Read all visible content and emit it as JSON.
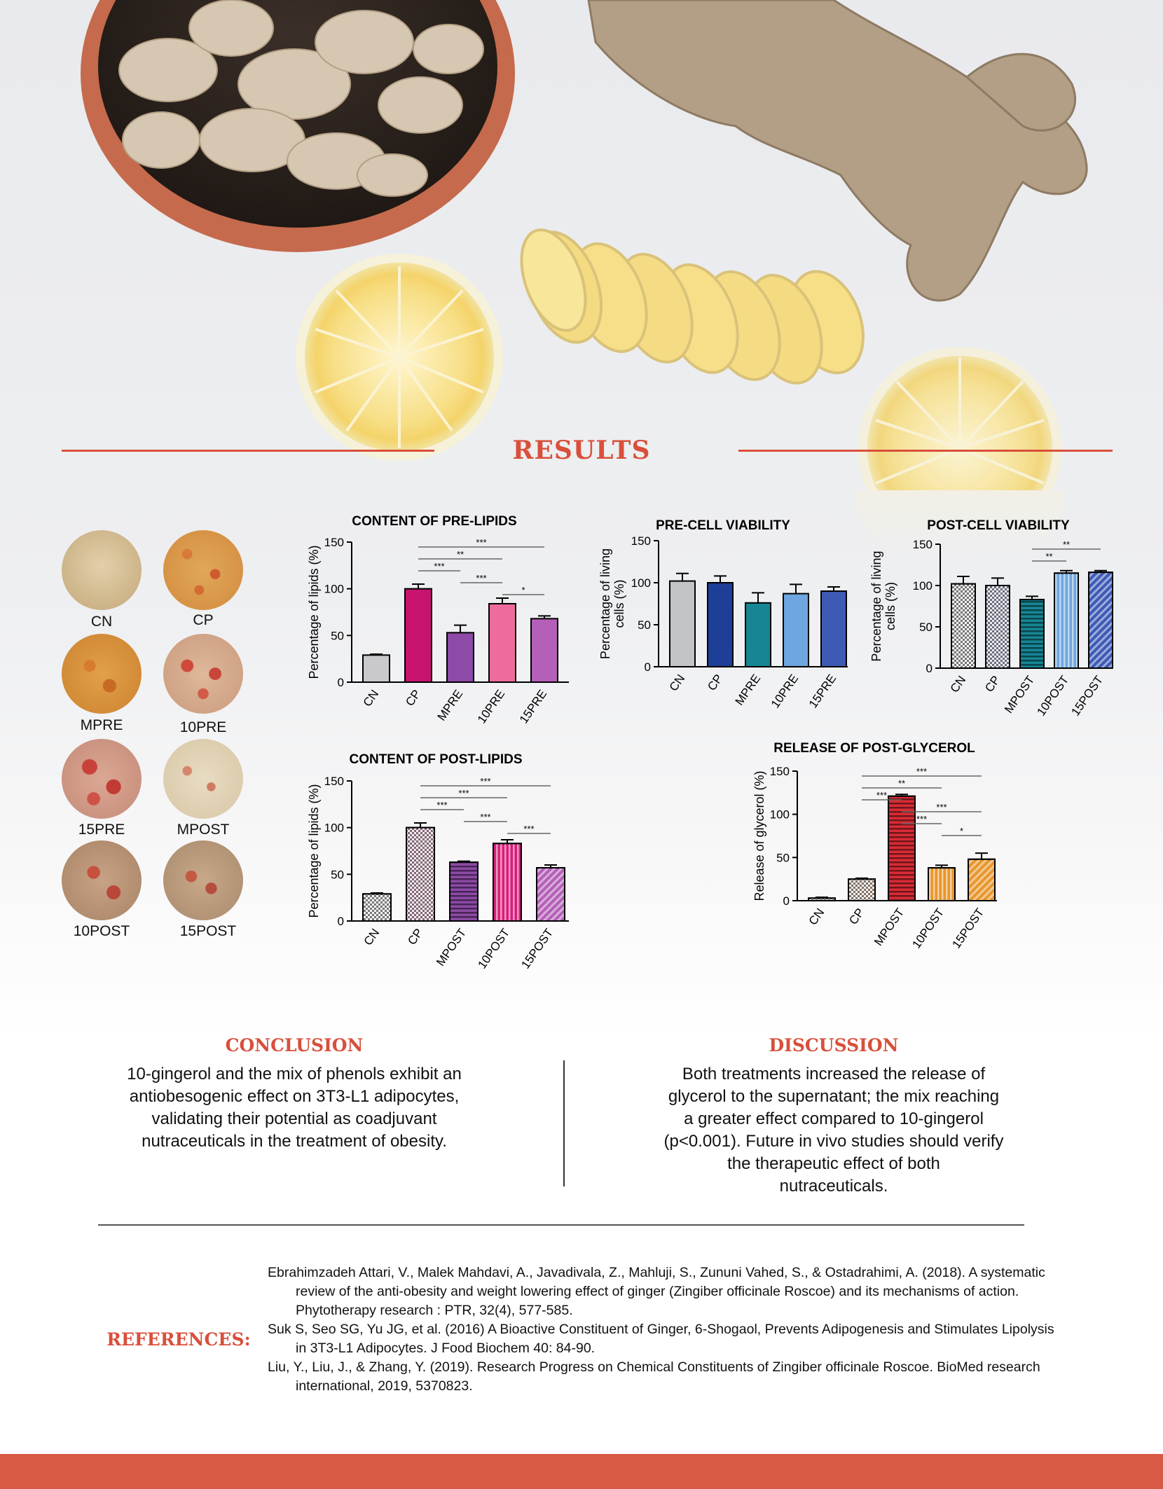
{
  "header": {
    "section_title": "RESULTS"
  },
  "micrographs": [
    {
      "label": "CN"
    },
    {
      "label": "CP"
    },
    {
      "label": "MPRE"
    },
    {
      "label": "10PRE"
    },
    {
      "label": "15PRE"
    },
    {
      "label": "MPOST"
    },
    {
      "label": "10POST"
    },
    {
      "label": "15POST"
    }
  ],
  "colors": {
    "accent": "#d94f3b",
    "footer": "#d95a44"
  },
  "chart_data": [
    {
      "id": "pre_lipids",
      "type": "bar",
      "title": "CONTENT OF PRE-LIPIDS",
      "ylabel": "Percentage of lipids (%)",
      "ylim": [
        0,
        150
      ],
      "yticks": [
        0,
        50,
        100,
        150
      ],
      "categories": [
        "CN",
        "CP",
        "MPRE",
        "10PRE",
        "15PRE"
      ],
      "values": [
        29,
        100,
        53,
        84,
        68
      ],
      "errors": [
        1,
        5,
        8,
        6,
        3
      ],
      "colors": [
        "#c9c9cb",
        "#c8146e",
        "#8d4aa6",
        "#ee6c9d",
        "#b45fb8"
      ],
      "significance": [
        {
          "from": 1,
          "to": 4,
          "label": "***"
        },
        {
          "from": 1,
          "to": 3,
          "label": "**"
        },
        {
          "from": 1,
          "to": 2,
          "label": "***"
        },
        {
          "from": 2,
          "to": 3,
          "label": "***"
        },
        {
          "from": 3,
          "to": 4,
          "label": "*"
        }
      ]
    },
    {
      "id": "pre_viability",
      "type": "bar",
      "title": "PRE-CELL VIABILITY",
      "ylabel": [
        "Percentage of living",
        "cells (%)"
      ],
      "ylim": [
        0,
        150
      ],
      "yticks": [
        0,
        50,
        100,
        150
      ],
      "categories": [
        "CN",
        "CP",
        "MPRE",
        "10PRE",
        "15PRE"
      ],
      "values": [
        102,
        100,
        76,
        87,
        90
      ],
      "errors": [
        9,
        8,
        12,
        11,
        5
      ],
      "colors": [
        "#c2c3c6",
        "#1e3f98",
        "#168695",
        "#6ea6df",
        "#3d5ab5"
      ],
      "significance": []
    },
    {
      "id": "post_viability",
      "type": "bar",
      "title": "POST-CELL VIABILITY",
      "ylabel": [
        "Percentage of living",
        "cells (%)"
      ],
      "ylim": [
        0,
        150
      ],
      "yticks": [
        0,
        50,
        100,
        150
      ],
      "categories": [
        "CN",
        "CP",
        "MPOST",
        "10POST",
        "15POST"
      ],
      "values": [
        102,
        100,
        83,
        115,
        116
      ],
      "errors": [
        9,
        9,
        4,
        3,
        2
      ],
      "colors": [
        "#8a8a8a",
        "#1f3d96",
        "#168695",
        "#6ea6df",
        "#3d5ab5"
      ],
      "patterns": [
        "check",
        "check",
        "hline",
        "vline",
        "diag"
      ],
      "significance": [
        {
          "from": 2,
          "to": 4,
          "label": "**"
        },
        {
          "from": 2,
          "to": 3,
          "label": "**"
        }
      ]
    },
    {
      "id": "post_lipids",
      "type": "bar",
      "title": "CONTENT OF POST-LIPIDS",
      "ylabel": "Percentage of lipids (%)",
      "ylim": [
        0,
        150
      ],
      "yticks": [
        0,
        50,
        100,
        150
      ],
      "categories": [
        "CN",
        "CP",
        "MPOST",
        "10POST",
        "15POST"
      ],
      "values": [
        29,
        100,
        63,
        83,
        57
      ],
      "errors": [
        1,
        5,
        1,
        4,
        3
      ],
      "colors": [
        "#999999",
        "#c8146e",
        "#8d4aa6",
        "#d81e7a",
        "#b45fb8"
      ],
      "patterns": [
        "check",
        "check",
        "hline",
        "vline",
        "diag"
      ],
      "significance": [
        {
          "from": 1,
          "to": 4,
          "label": "***"
        },
        {
          "from": 1,
          "to": 3,
          "label": "***"
        },
        {
          "from": 1,
          "to": 2,
          "label": "***"
        },
        {
          "from": 2,
          "to": 3,
          "label": "***"
        },
        {
          "from": 3,
          "to": 4,
          "label": "***"
        }
      ]
    },
    {
      "id": "post_glycerol",
      "type": "bar",
      "title": "RELEASE OF POST-GLYCEROL",
      "ylabel": "Release of glycerol (%)",
      "ylim": [
        0,
        150
      ],
      "yticks": [
        0,
        50,
        100,
        150
      ],
      "categories": [
        "CN",
        "CP",
        "MPOST",
        "10POST",
        "15POST"
      ],
      "values": [
        3,
        25,
        121,
        38,
        48
      ],
      "errors": [
        1,
        1,
        2,
        3,
        7
      ],
      "colors": [
        "#8a8a8a",
        "#e6782c",
        "#d92b35",
        "#e8962c",
        "#e8962c"
      ],
      "patterns": [
        "check",
        "check",
        "hline",
        "vline",
        "diag"
      ],
      "significance": [
        {
          "from": 1,
          "to": 4,
          "label": "***"
        },
        {
          "from": 1,
          "to": 3,
          "label": "**"
        },
        {
          "from": 1,
          "to": 2,
          "label": "***"
        },
        {
          "from": 2,
          "to": 4,
          "label": "***"
        },
        {
          "from": 2,
          "to": 3,
          "label": "***"
        },
        {
          "from": 3,
          "to": 4,
          "label": "*"
        }
      ]
    }
  ],
  "conclusion": {
    "title": "CONCLUSION",
    "lines": [
      "10-gingerol and the mix of phenols exhibit an",
      "antiobesogenic effect on 3T3-L1 adipocytes,",
      "validating their potential as coadjuvant",
      "nutraceuticals in the treatment of obesity."
    ]
  },
  "discussion": {
    "title": "DISCUSSION",
    "lines": [
      "Both treatments increased the release of",
      "glycerol to the supernatant; the mix reaching",
      "a greater effect compared to 10-gingerol",
      "(p<0.001). Future in vivo studies should verify",
      "the therapeutic effect  of both",
      "nutraceuticals."
    ]
  },
  "references": {
    "title": "REFERENCES:",
    "items": [
      "Ebrahimzadeh Attari, V., Malek Mahdavi, A., Javadivala, Z., Mahluji, S., Zununi Vahed, S., & Ostadrahimi, A. (2018). A systematic review of the anti-obesity and weight lowering effect of ginger (Zingiber officinale Roscoe) and its mechanisms of action. Phytotherapy research : PTR, 32(4), 577-585.",
      "Suk S, Seo SG, Yu JG, et al. (2016) A Bioactive Constituent of Ginger, 6-Shogaol, Prevents Adipogenesis and Stimulates Lipolysis in 3T3-L1 Adipocytes. J Food Biochem 40: 84-90.",
      "Liu, Y., Liu, J., & Zhang, Y. (2019). Research Progress on Chemical Constituents of Zingiber officinale Roscoe. BioMed research international, 2019, 5370823."
    ]
  }
}
